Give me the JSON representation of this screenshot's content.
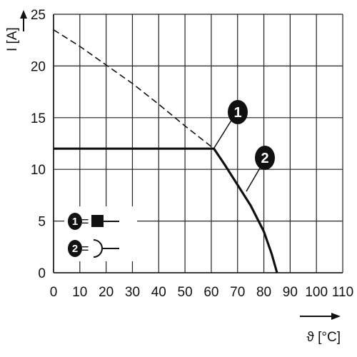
{
  "chart_data": {
    "type": "line",
    "xlabel": "ϑ [°C]",
    "ylabel": "I [A]",
    "xlim": [
      0,
      110
    ],
    "ylim": [
      0,
      25
    ],
    "x_ticks": [
      "0",
      "10",
      "20",
      "30",
      "40",
      "50",
      "60",
      "70",
      "80",
      "90",
      "100",
      "110"
    ],
    "y_ticks": [
      "0",
      "5",
      "10",
      "15",
      "20",
      "25"
    ],
    "grid": true,
    "series": [
      {
        "style": "dashed",
        "x": [
          0,
          10,
          20,
          30,
          40,
          50,
          61
        ],
        "y": [
          23.5,
          21.9,
          20.1,
          18.3,
          16.3,
          14.2,
          12.0
        ]
      },
      {
        "style": "solid-thick",
        "x": [
          0,
          61,
          65,
          70,
          75,
          80,
          83,
          85
        ],
        "y": [
          12.0,
          12.0,
          10.5,
          8.5,
          6.5,
          4.0,
          1.8,
          0
        ]
      }
    ],
    "annotations": [
      {
        "label": "1"
      },
      {
        "label": "2"
      }
    ],
    "legend": {
      "placement": "bottom-left",
      "entries": [
        {
          "marker": "1",
          "eq": "=",
          "icon": "solid-square-plug-icon"
        },
        {
          "marker": "2",
          "eq": "=",
          "icon": "open-arc-socket-icon"
        }
      ]
    }
  }
}
